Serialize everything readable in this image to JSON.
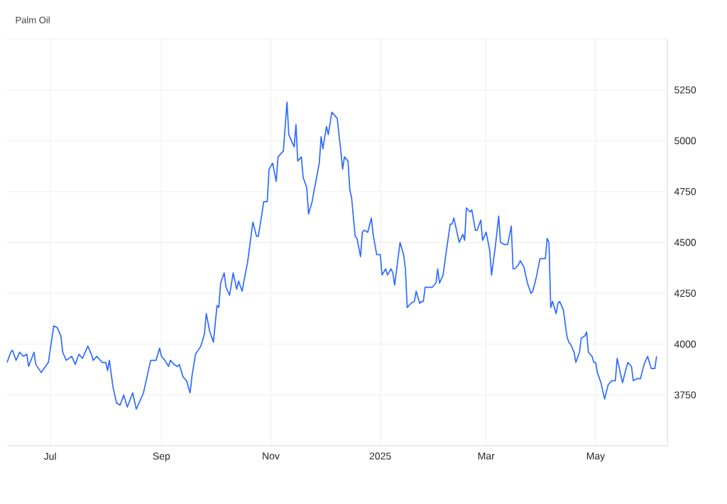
{
  "chart_data": {
    "type": "line",
    "title": "Palm Oil",
    "color": "#2f6bff",
    "grid": true,
    "xlim": [
      "2024-06-07",
      "2025-06-10"
    ],
    "ylim": [
      3500,
      5500
    ],
    "xticks": [
      {
        "value": "2024-07-01",
        "label": "Jul"
      },
      {
        "value": "2024-09-01",
        "label": "Sep"
      },
      {
        "value": "2024-11-01",
        "label": "Nov"
      },
      {
        "value": "2025-01-01",
        "label": "2025"
      },
      {
        "value": "2025-03-01",
        "label": "Mar"
      },
      {
        "value": "2025-05-01",
        "label": "May"
      }
    ],
    "yticks": [
      3750,
      4000,
      4250,
      4500,
      4750,
      5000,
      5250,
      {
        "value": 5500,
        "label": null
      }
    ],
    "x": [
      "2024-06-07",
      "2024-06-09",
      "2024-06-10",
      "2024-06-12",
      "2024-06-14",
      "2024-06-16",
      "2024-06-18",
      "2024-06-19",
      "2024-06-22",
      "2024-06-23",
      "2024-06-26",
      "2024-06-30",
      "2024-07-03",
      "2024-07-05",
      "2024-07-07",
      "2024-07-08",
      "2024-07-10",
      "2024-07-13",
      "2024-07-15",
      "2024-07-17",
      "2024-07-19",
      "2024-07-22",
      "2024-07-24",
      "2024-07-25",
      "2024-07-27",
      "2024-07-30",
      "2024-08-01",
      "2024-08-02",
      "2024-08-03",
      "2024-08-05",
      "2024-08-07",
      "2024-08-09",
      "2024-08-11",
      "2024-08-13",
      "2024-08-16",
      "2024-08-18",
      "2024-08-20",
      "2024-08-22",
      "2024-08-24",
      "2024-08-26",
      "2024-08-29",
      "2024-08-31",
      "2024-09-01",
      "2024-09-03",
      "2024-09-05",
      "2024-09-06",
      "2024-09-08",
      "2024-09-10",
      "2024-09-11",
      "2024-09-13",
      "2024-09-15",
      "2024-09-17",
      "2024-09-18",
      "2024-09-20",
      "2024-09-23",
      "2024-09-25",
      "2024-09-26",
      "2024-09-28",
      "2024-09-30",
      "2024-10-02",
      "2024-10-03",
      "2024-10-04",
      "2024-10-06",
      "2024-10-07",
      "2024-10-09",
      "2024-10-11",
      "2024-10-13",
      "2024-10-14",
      "2024-10-16",
      "2024-10-17",
      "2024-10-19",
      "2024-10-22",
      "2024-10-24",
      "2024-10-25",
      "2024-10-27",
      "2024-10-28",
      "2024-10-30",
      "2024-10-31",
      "2024-11-02",
      "2024-11-04",
      "2024-11-05",
      "2024-11-08",
      "2024-11-10",
      "2024-11-11",
      "2024-11-13",
      "2024-11-14",
      "2024-11-15",
      "2024-11-16",
      "2024-11-18",
      "2024-11-19",
      "2024-11-21",
      "2024-11-22",
      "2024-11-24",
      "2024-11-25",
      "2024-11-28",
      "2024-11-29",
      "2024-11-30",
      "2024-12-02",
      "2024-12-03",
      "2024-12-05",
      "2024-12-07",
      "2024-12-08",
      "2024-12-10",
      "2024-12-11",
      "2024-12-12",
      "2024-12-14",
      "2024-12-15",
      "2024-12-16",
      "2024-12-18",
      "2024-12-19",
      "2024-12-21",
      "2024-12-22",
      "2024-12-23",
      "2024-12-25",
      "2024-12-27",
      "2024-12-28",
      "2024-12-30",
      "2025-01-01",
      "2025-01-02",
      "2025-01-04",
      "2025-01-05",
      "2025-01-07",
      "2025-01-08",
      "2025-01-09",
      "2025-01-12",
      "2025-01-14",
      "2025-01-15",
      "2025-01-16",
      "2025-01-18",
      "2025-01-20",
      "2025-01-21",
      "2025-01-23",
      "2025-01-24",
      "2025-01-25",
      "2025-01-26",
      "2025-01-30",
      "2025-02-01",
      "2025-02-02",
      "2025-02-03",
      "2025-02-05",
      "2025-02-07",
      "2025-02-09",
      "2025-02-10",
      "2025-02-11",
      "2025-02-13",
      "2025-02-14",
      "2025-02-16",
      "2025-02-17",
      "2025-02-18",
      "2025-02-20",
      "2025-02-21",
      "2025-02-23",
      "2025-02-24",
      "2025-02-26",
      "2025-02-27",
      "2025-03-01",
      "2025-03-03",
      "2025-03-04",
      "2025-03-06",
      "2025-03-08",
      "2025-03-09",
      "2025-03-11",
      "2025-03-13",
      "2025-03-15",
      "2025-03-16",
      "2025-03-17",
      "2025-03-19",
      "2025-03-20",
      "2025-03-22",
      "2025-03-24",
      "2025-03-26",
      "2025-03-27",
      "2025-03-29",
      "2025-03-31",
      "2025-04-03",
      "2025-04-04",
      "2025-04-05",
      "2025-04-06",
      "2025-04-07",
      "2025-04-09",
      "2025-04-10",
      "2025-04-11",
      "2025-04-13",
      "2025-04-15",
      "2025-04-16",
      "2025-04-17",
      "2025-04-19",
      "2025-04-20",
      "2025-04-22",
      "2025-04-23",
      "2025-04-25",
      "2025-04-26",
      "2025-04-27",
      "2025-04-29",
      "2025-04-30",
      "2025-05-01",
      "2025-05-02",
      "2025-05-04",
      "2025-05-05",
      "2025-05-06",
      "2025-05-08",
      "2025-05-10",
      "2025-05-12",
      "2025-05-13",
      "2025-05-16",
      "2025-05-18",
      "2025-05-19",
      "2025-05-21",
      "2025-05-22",
      "2025-05-24",
      "2025-05-26",
      "2025-05-28",
      "2025-05-30",
      "2025-06-01",
      "2025-06-03",
      "2025-06-04"
    ],
    "values": [
      3910,
      3960,
      3970,
      3920,
      3960,
      3940,
      3950,
      3890,
      3960,
      3900,
      3860,
      3910,
      4090,
      4080,
      4040,
      3960,
      3920,
      3940,
      3900,
      3950,
      3930,
      3990,
      3950,
      3920,
      3940,
      3910,
      3910,
      3870,
      3920,
      3790,
      3710,
      3700,
      3750,
      3690,
      3760,
      3680,
      3720,
      3760,
      3840,
      3920,
      3920,
      3980,
      3940,
      3920,
      3890,
      3920,
      3900,
      3890,
      3900,
      3840,
      3820,
      3760,
      3840,
      3950,
      3990,
      4050,
      4150,
      4060,
      4010,
      4190,
      4180,
      4300,
      4350,
      4280,
      4240,
      4350,
      4270,
      4310,
      4260,
      4310,
      4400,
      4600,
      4530,
      4530,
      4640,
      4700,
      4700,
      4860,
      4890,
      4800,
      4920,
      4950,
      5190,
      5030,
      4990,
      4970,
      5080,
      4900,
      4920,
      4820,
      4770,
      4640,
      4700,
      4750,
      4890,
      5020,
      4960,
      5070,
      5030,
      5140,
      5120,
      5110,
      4950,
      4860,
      4920,
      4900,
      4760,
      4720,
      4530,
      4520,
      4430,
      4550,
      4560,
      4550,
      4620,
      4540,
      4440,
      4440,
      4340,
      4370,
      4340,
      4370,
      4350,
      4290,
      4500,
      4440,
      4370,
      4180,
      4200,
      4210,
      4260,
      4200,
      4210,
      4210,
      4280,
      4280,
      4300,
      4370,
      4300,
      4340,
      4470,
      4590,
      4590,
      4620,
      4540,
      4500,
      4540,
      4510,
      4670,
      4650,
      4660,
      4560,
      4560,
      4610,
      4510,
      4550,
      4460,
      4340,
      4470,
      4630,
      4500,
      4490,
      4490,
      4580,
      4370,
      4370,
      4390,
      4410,
      4380,
      4300,
      4250,
      4260,
      4330,
      4420,
      4420,
      4520,
      4500,
      4180,
      4210,
      4150,
      4200,
      4210,
      4170,
      4040,
      4010,
      4000,
      3960,
      3910,
      3960,
      4030,
      4040,
      4060,
      3960,
      3940,
      3910,
      3910,
      3860,
      3810,
      3770,
      3730,
      3800,
      3820,
      3820,
      3930,
      3810,
      3880,
      3910,
      3890,
      3820,
      3830,
      3830,
      3900,
      3940,
      3880,
      3880,
      3940
    ]
  }
}
